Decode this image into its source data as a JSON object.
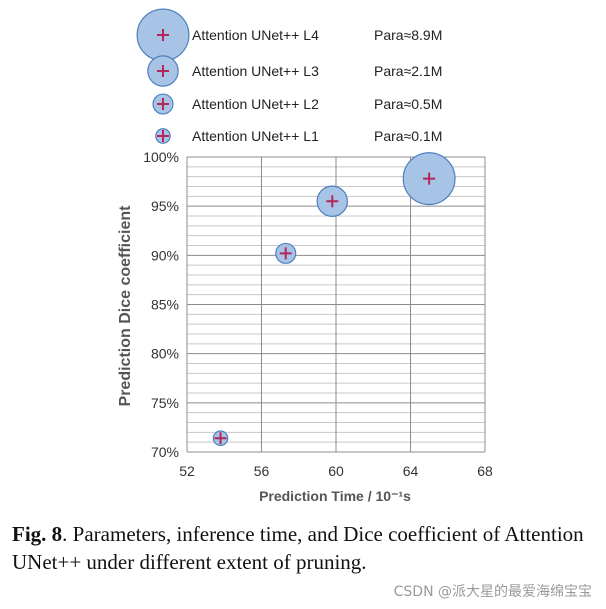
{
  "chart_data": {
    "type": "scatter",
    "xlabel": "Prediction Time / 10⁻¹s",
    "ylabel": "Prediction Dice coefficient",
    "xlim": [
      52,
      68
    ],
    "ylim": [
      70,
      100
    ],
    "x_ticks": [
      "52",
      "56",
      "60",
      "64",
      "68"
    ],
    "y_ticks": [
      "70%",
      "75%",
      "80%",
      "85%",
      "90%",
      "95%",
      "100%"
    ],
    "grid": true,
    "legend_position": "top",
    "series": [
      {
        "name": "Attention UNet++ L4",
        "param_label": "Para≈8.9M",
        "params_m": 8.9,
        "x": 65.0,
        "y": 97.8
      },
      {
        "name": "Attention UNet++ L3",
        "param_label": "Para≈2.1M",
        "params_m": 2.1,
        "x": 59.8,
        "y": 95.5
      },
      {
        "name": "Attention UNet++ L2",
        "param_label": "Para≈0.5M",
        "params_m": 0.5,
        "x": 57.3,
        "y": 90.2
      },
      {
        "name": "Attention UNet++ L1",
        "param_label": "Para≈0.1M",
        "params_m": 0.1,
        "x": 53.8,
        "y": 71.4
      }
    ]
  },
  "caption": {
    "fig_label": "Fig. 8",
    "text": ".  Parameters, inference time, and Dice coefficient of Attention UNet++ under different extent of pruning."
  },
  "watermark": "CSDN @派大星的最爱海绵宝宝",
  "colors": {
    "bubble_fill": "#a7c3e6",
    "bubble_stroke": "#4f81bd",
    "marker": "#b5265b",
    "grid_major": "#8c8c8c",
    "grid_minor": "#c8c8c8"
  }
}
